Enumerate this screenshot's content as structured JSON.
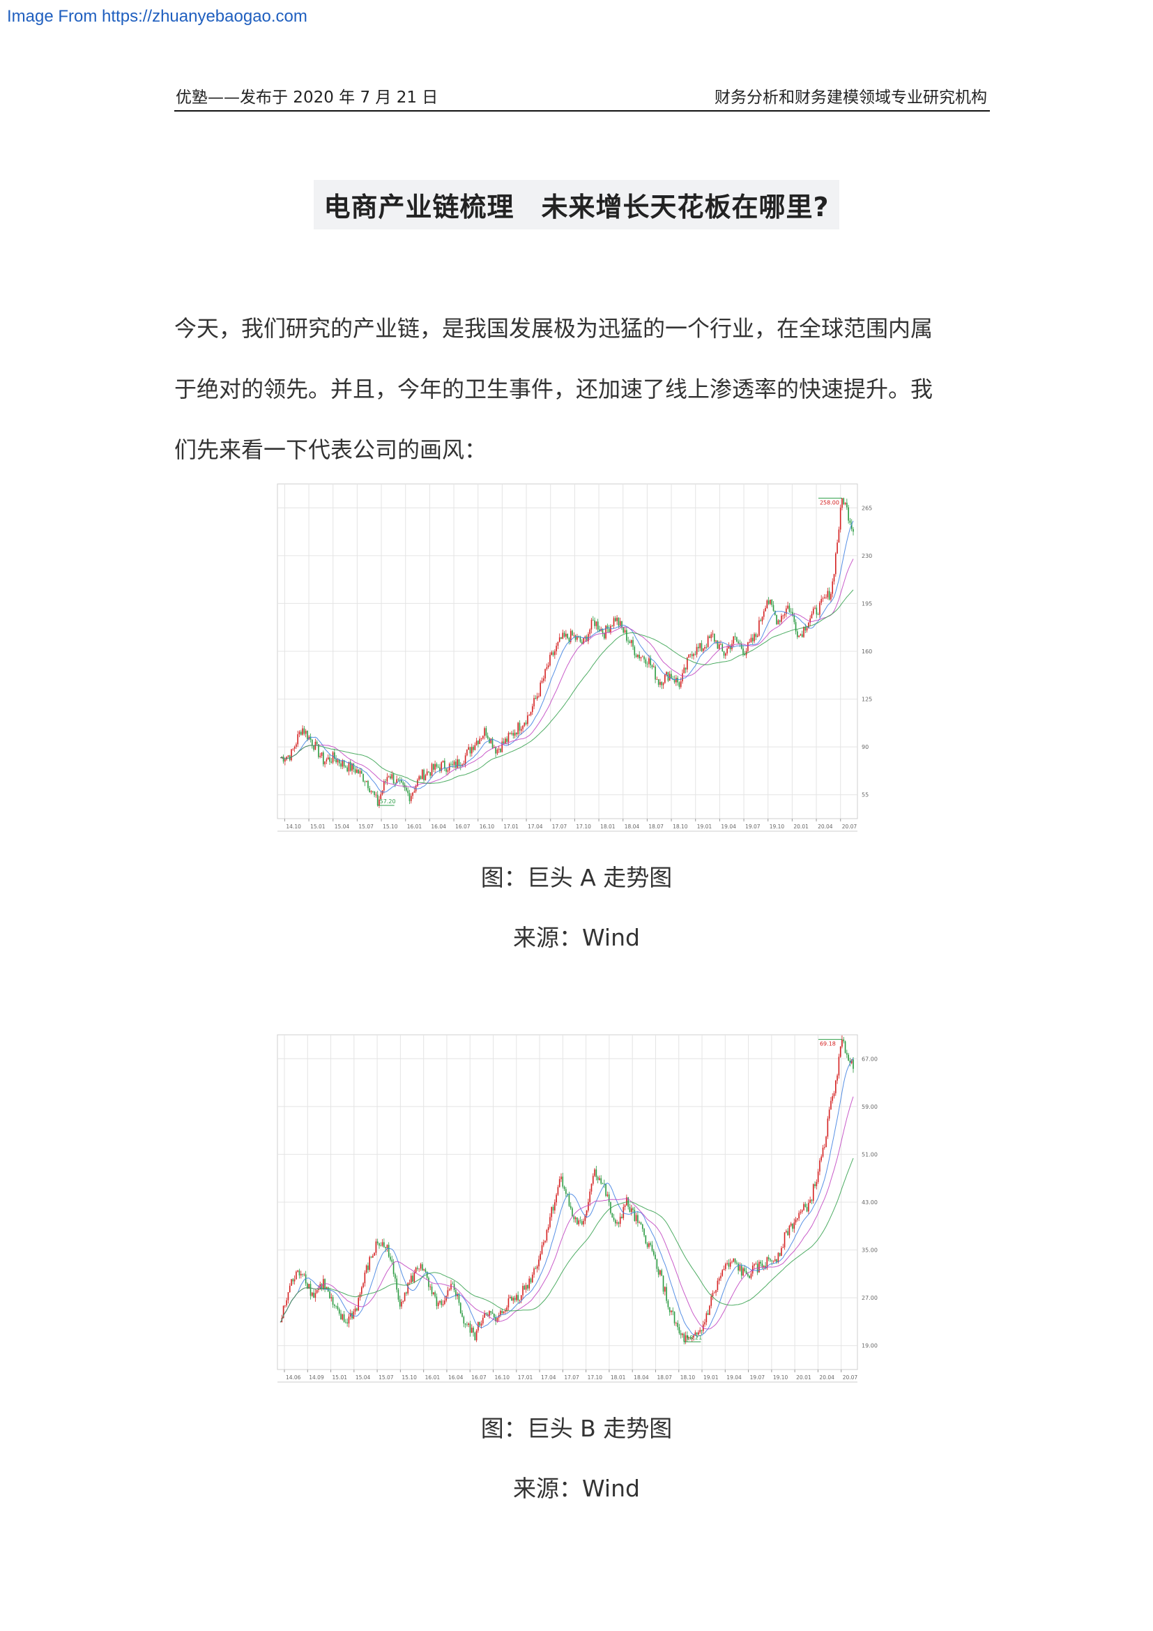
{
  "watermark": "Image From https://zhuanyebaogao.com",
  "header": {
    "left": "优塾——发布于 2020 年 7 月 21 日",
    "right": "财务分析和财务建模领域专业研究机构"
  },
  "title": "电商产业链梳理　未来增长天花板在哪里?",
  "paragraph": {
    "lines": [
      "今天，我们研究的产业链，是我国发展极为迅猛的一个行业，在全球范围内属",
      "于绝对的领先。并且，今年的卫生事件，还加速了线上渗透率的快速提升。我",
      "们先来看一下代表公司的画风："
    ]
  },
  "figures": [
    {
      "caption": "图：巨头 A 走势图",
      "source": "来源：Wind"
    },
    {
      "caption": "图：巨头 B 走势图",
      "source": "来源：Wind"
    }
  ],
  "colors": {
    "up": "#d42020",
    "down": "#2a9a40",
    "ma1": "#3a7de0",
    "ma2": "#c040c0",
    "ma3": "#2e9e48",
    "grid": "#e4e4e4"
  },
  "chart_data": [
    {
      "type": "line",
      "ylim": [
        50,
        270
      ],
      "y_ticks": [
        55,
        90,
        125,
        160,
        195,
        230,
        265
      ],
      "x_ticks": [
        "14.10",
        "15.01",
        "15.04",
        "15.07",
        "15.10",
        "16.01",
        "16.04",
        "16.07",
        "16.10",
        "17.01",
        "17.04",
        "17.07",
        "17.10",
        "18.01",
        "18.04",
        "18.07",
        "18.10",
        "19.01",
        "19.04",
        "19.07",
        "19.10",
        "20.01",
        "20.04",
        "20.07"
      ],
      "series": [
        {
          "values": [
            90,
            92,
            110,
            100,
            88,
            90,
            85,
            82,
            75,
            60,
            80,
            72,
            65,
            78,
            82,
            85,
            84,
            90,
            100,
            108,
            95,
            102,
            110,
            118,
            135,
            155,
            168,
            170,
            165,
            180,
            172,
            182,
            170,
            158,
            155,
            140,
            145,
            138,
            160,
            162,
            170,
            158,
            168,
            160,
            170,
            195,
            180,
            190,
            170,
            182,
            190,
            200,
            262,
            240
          ]
        }
      ],
      "annotations": [
        {
          "label": "258.00"
        },
        {
          "label": "57.20"
        }
      ]
    },
    {
      "type": "line",
      "ylim": [
        15,
        65
      ],
      "y_ticks": [
        "19.00",
        "27.00",
        "35.00",
        "43.00",
        "51.00",
        "59.00",
        "67.00"
      ],
      "x_ticks": [
        "14.06",
        "14.09",
        "15.01",
        "15.04",
        "15.07",
        "15.10",
        "16.01",
        "16.04",
        "16.07",
        "16.10",
        "17.01",
        "17.04",
        "17.07",
        "17.10",
        "18.01",
        "18.04",
        "18.07",
        "18.10",
        "19.01",
        "19.04",
        "19.07",
        "19.10",
        "20.01",
        "20.04",
        "20.07"
      ],
      "series": [
        {
          "values": [
            22,
            28,
            30,
            26,
            28,
            24,
            22,
            24,
            30,
            34,
            33,
            25,
            28,
            31,
            26,
            24,
            28,
            22,
            20,
            24,
            22,
            25,
            26,
            28,
            32,
            38,
            44,
            38,
            36,
            45,
            42,
            36,
            40,
            37,
            34,
            30,
            24,
            20,
            19,
            21,
            26,
            30,
            31,
            29,
            30,
            31,
            32,
            36,
            38,
            40,
            46,
            55,
            64,
            60
          ]
        }
      ],
      "annotations": [
        {
          "label": "69.18"
        },
        {
          "label": "18.21"
        }
      ]
    }
  ]
}
